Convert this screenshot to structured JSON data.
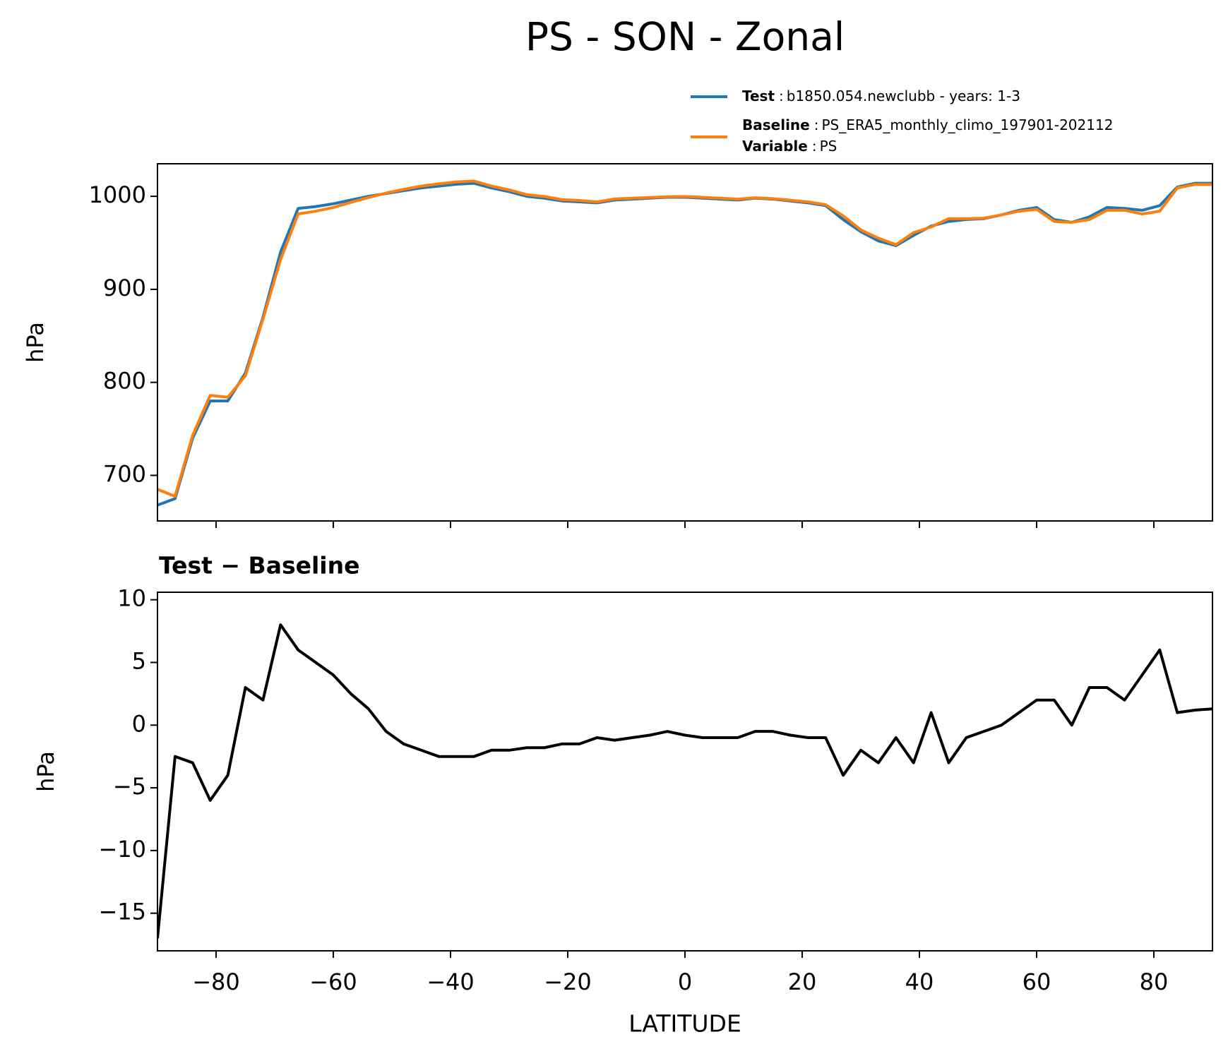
{
  "chart_data": [
    {
      "type": "line",
      "title": "PS - SON - Zonal",
      "ylabel": "hPa",
      "legend_separator": ":",
      "legend_extra": {
        "name": "Variable",
        "text": "PS"
      },
      "x": [
        -90,
        -87,
        -84,
        -81,
        -78,
        -75,
        -72,
        -69,
        -66,
        -63,
        -60,
        -57,
        -54,
        -51,
        -48,
        -45,
        -42,
        -39,
        -36,
        -33,
        -30,
        -27,
        -24,
        -21,
        -18,
        -15,
        -12,
        -9,
        -6,
        -3,
        0,
        3,
        6,
        9,
        12,
        15,
        18,
        21,
        24,
        27,
        30,
        33,
        36,
        39,
        42,
        45,
        48,
        51,
        54,
        57,
        60,
        63,
        66,
        69,
        72,
        75,
        78,
        81,
        84,
        87,
        90
      ],
      "series": [
        {
          "name": "Test",
          "text": "b1850.054.newclubb - years: 1-3",
          "color": "#1f77b4",
          "values": [
            668,
            675,
            740,
            780,
            780,
            810,
            870,
            940,
            987,
            989,
            992,
            996,
            1000,
            1003,
            1006,
            1009,
            1011,
            1013,
            1014,
            1009,
            1005,
            1000,
            998,
            995,
            994,
            993,
            996,
            997,
            998,
            999,
            999,
            998,
            997,
            996,
            998,
            997,
            995,
            993,
            990,
            975,
            962,
            952,
            947,
            958,
            968,
            973,
            975,
            976,
            980,
            985,
            988,
            975,
            972,
            978,
            988,
            987,
            985,
            990,
            1010,
            1014,
            1014
          ]
        },
        {
          "name": "Baseline",
          "text": "PS_ERA5_monthly_climo_197901-202112",
          "color": "#ff7f0e",
          "values": [
            685,
            677.5,
            743,
            786,
            784,
            807,
            868,
            932,
            981,
            984,
            988,
            993.5,
            998.7,
            1003.5,
            1007.5,
            1011,
            1013.5,
            1015.5,
            1016.5,
            1011,
            1007,
            1001.8,
            999.8,
            996.5,
            995.5,
            994,
            997.2,
            998,
            998.8,
            999.5,
            999.8,
            999,
            998,
            997,
            998.5,
            997.5,
            995.8,
            994,
            991,
            979,
            964,
            955,
            948,
            961,
            967,
            976,
            976,
            976.5,
            980,
            984,
            986,
            973,
            972,
            975,
            985,
            985,
            981,
            984,
            1009,
            1012.8,
            1012.7
          ]
        }
      ],
      "xlim": [
        -90,
        90
      ],
      "xticks": [
        -80,
        -60,
        -40,
        -20,
        0,
        20,
        40,
        60,
        80
      ],
      "ylim": [
        651,
        1035
      ],
      "yticks": [
        700,
        800,
        900,
        1000
      ]
    },
    {
      "type": "line",
      "title": "Test − Baseline",
      "ylabel": "hPa",
      "xlabel": "LATITUDE",
      "x": [
        -90,
        -87,
        -84,
        -81,
        -78,
        -75,
        -72,
        -69,
        -66,
        -63,
        -60,
        -57,
        -54,
        -51,
        -48,
        -45,
        -42,
        -39,
        -36,
        -33,
        -30,
        -27,
        -24,
        -21,
        -18,
        -15,
        -12,
        -9,
        -6,
        -3,
        0,
        3,
        6,
        9,
        12,
        15,
        18,
        21,
        24,
        27,
        30,
        33,
        36,
        39,
        42,
        45,
        48,
        51,
        54,
        57,
        60,
        63,
        66,
        69,
        72,
        75,
        78,
        81,
        84,
        87,
        90
      ],
      "series": [
        {
          "color": "#000000",
          "values": [
            -17,
            -2.5,
            -3,
            -6,
            -4,
            3,
            2,
            8,
            6,
            5,
            4,
            2.5,
            1.3,
            -0.5,
            -1.5,
            -2,
            -2.5,
            -2.5,
            -2.5,
            -2,
            -2,
            -1.8,
            -1.8,
            -1.5,
            -1.5,
            -1,
            -1.2,
            -1,
            -0.8,
            -0.5,
            -0.8,
            -1,
            -1,
            -1,
            -0.5,
            -0.5,
            -0.8,
            -1,
            -1,
            -4,
            -2,
            -3,
            -1,
            -3,
            1,
            -3,
            -1,
            -0.5,
            0,
            1,
            2,
            2,
            0,
            3,
            3,
            2,
            4,
            6,
            1,
            1.2,
            1.3
          ]
        }
      ],
      "xlim": [
        -90,
        90
      ],
      "xticks": [
        {
          "value": -80,
          "label": "−80"
        },
        {
          "value": -60,
          "label": "−60"
        },
        {
          "value": -40,
          "label": "−40"
        },
        {
          "value": -20,
          "label": "−20"
        },
        0,
        20,
        40,
        60,
        80
      ],
      "ylim": [
        -18,
        10.6
      ],
      "yticks": [
        {
          "value": -15,
          "label": "−15"
        },
        {
          "value": -10,
          "label": "−10"
        },
        {
          "value": -5,
          "label": "−5"
        },
        0,
        5,
        10
      ]
    }
  ]
}
